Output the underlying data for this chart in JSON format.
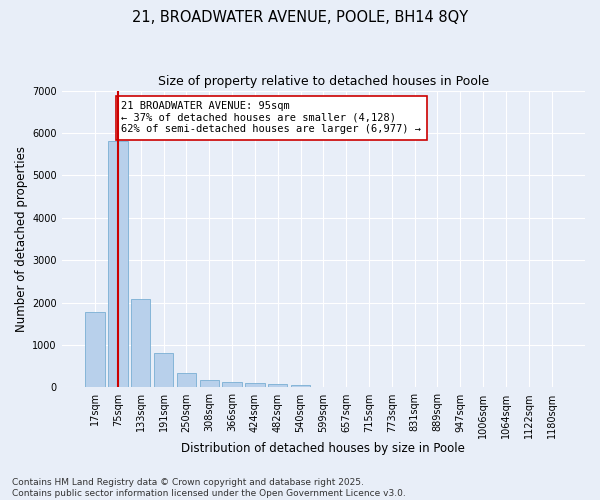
{
  "title_line1": "21, BROADWATER AVENUE, POOLE, BH14 8QY",
  "title_line2": "Size of property relative to detached houses in Poole",
  "xlabel": "Distribution of detached houses by size in Poole",
  "ylabel": "Number of detached properties",
  "categories": [
    "17sqm",
    "75sqm",
    "133sqm",
    "191sqm",
    "250sqm",
    "308sqm",
    "366sqm",
    "424sqm",
    "482sqm",
    "540sqm",
    "599sqm",
    "657sqm",
    "715sqm",
    "773sqm",
    "831sqm",
    "889sqm",
    "947sqm",
    "1006sqm",
    "1064sqm",
    "1122sqm",
    "1180sqm"
  ],
  "values": [
    1780,
    5820,
    2080,
    820,
    340,
    185,
    120,
    100,
    80,
    60,
    0,
    0,
    0,
    0,
    0,
    0,
    0,
    0,
    0,
    0,
    0
  ],
  "bar_color": "#b8d0eb",
  "bar_edge_color": "#7aafd4",
  "property_line_x": 1.0,
  "property_line_color": "#cc0000",
  "annotation_text": "21 BROADWATER AVENUE: 95sqm\n← 37% of detached houses are smaller (4,128)\n62% of semi-detached houses are larger (6,977) →",
  "annotation_box_color": "#ffffff",
  "annotation_box_edge": "#cc0000",
  "ylim": [
    0,
    7000
  ],
  "yticks": [
    0,
    1000,
    2000,
    3000,
    4000,
    5000,
    6000,
    7000
  ],
  "background_color": "#e8eef8",
  "grid_color": "#ffffff",
  "footer_line1": "Contains HM Land Registry data © Crown copyright and database right 2025.",
  "footer_line2": "Contains public sector information licensed under the Open Government Licence v3.0.",
  "title_fontsize": 10.5,
  "subtitle_fontsize": 9,
  "axis_label_fontsize": 8.5,
  "tick_fontsize": 7,
  "annotation_fontsize": 7.5,
  "footer_fontsize": 6.5
}
